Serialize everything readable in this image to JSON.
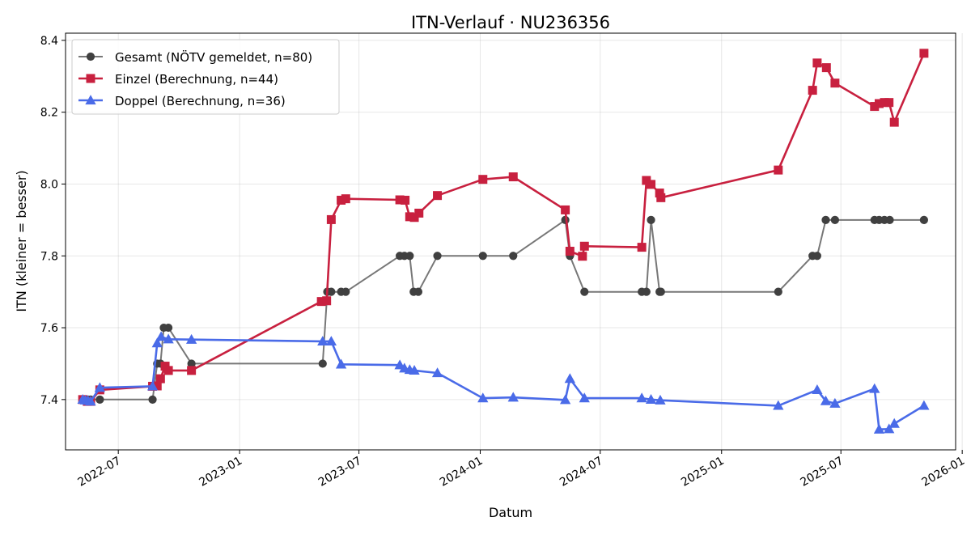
{
  "chart_data": {
    "type": "line",
    "title": "ITN-Verlauf · NU236356",
    "xlabel": "Datum",
    "ylabel": "ITN  (kleiner = besser)",
    "x_type": "date",
    "xlim": [
      "2022-04-12",
      "2025-12-22"
    ],
    "ylim": [
      7.26,
      8.42
    ],
    "x_ticks": [
      "2022-07-01",
      "2023-01-01",
      "2023-07-01",
      "2024-01-01",
      "2024-07-01",
      "2025-01-01",
      "2025-07-01",
      "2026-01-01"
    ],
    "x_tick_labels": [
      "2022-07",
      "2023-01",
      "2023-07",
      "2024-01",
      "2024-07",
      "2025-01",
      "2025-07",
      "2026-01"
    ],
    "y_ticks": [
      7.4,
      7.6,
      7.8,
      8.0,
      8.2,
      8.4
    ],
    "y_tick_labels": [
      "7.4",
      "7.6",
      "7.8",
      "8.0",
      "8.2",
      "8.4"
    ],
    "grid": true,
    "legend_position": "top-left",
    "series": [
      {
        "name": "Gesamt (NÖTV gemeldet, n=80)",
        "color": "#555555",
        "marker": "circle",
        "points": [
          [
            "2022-05-08",
            7.4
          ],
          [
            "2022-05-12",
            7.4
          ],
          [
            "2022-05-16",
            7.4
          ],
          [
            "2022-05-20",
            7.4
          ],
          [
            "2022-06-03",
            7.4
          ],
          [
            "2022-08-22",
            7.4
          ],
          [
            "2022-08-29",
            7.5
          ],
          [
            "2022-09-03",
            7.5
          ],
          [
            "2022-09-08",
            7.6
          ],
          [
            "2022-09-15",
            7.6
          ],
          [
            "2022-10-20",
            7.5
          ],
          [
            "2023-05-07",
            7.5
          ],
          [
            "2023-05-14",
            7.7
          ],
          [
            "2023-05-20",
            7.7
          ],
          [
            "2023-06-04",
            7.7
          ],
          [
            "2023-06-11",
            7.7
          ],
          [
            "2023-09-01",
            7.8
          ],
          [
            "2023-09-08",
            7.8
          ],
          [
            "2023-09-16",
            7.8
          ],
          [
            "2023-09-22",
            7.7
          ],
          [
            "2023-09-29",
            7.7
          ],
          [
            "2023-10-28",
            7.8
          ],
          [
            "2024-01-05",
            7.8
          ],
          [
            "2024-02-20",
            7.8
          ],
          [
            "2024-05-09",
            7.9
          ],
          [
            "2024-05-16",
            7.8
          ],
          [
            "2024-06-07",
            7.7
          ],
          [
            "2024-09-02",
            7.7
          ],
          [
            "2024-09-09",
            7.7
          ],
          [
            "2024-09-16",
            7.9
          ],
          [
            "2024-09-29",
            7.7
          ],
          [
            "2024-10-01",
            7.7
          ],
          [
            "2025-03-28",
            7.7
          ],
          [
            "2025-05-19",
            7.8
          ],
          [
            "2025-05-26",
            7.8
          ],
          [
            "2025-06-08",
            7.9
          ],
          [
            "2025-06-22",
            7.9
          ],
          [
            "2025-08-21",
            7.9
          ],
          [
            "2025-08-28",
            7.9
          ],
          [
            "2025-09-05",
            7.9
          ],
          [
            "2025-09-13",
            7.9
          ],
          [
            "2025-11-04",
            7.9
          ]
        ]
      },
      {
        "name": "Einzel (Berechnung, n=44)",
        "color": "#c8203f",
        "marker": "square",
        "points": [
          [
            "2022-05-08",
            7.4
          ],
          [
            "2022-05-15",
            7.395
          ],
          [
            "2022-05-20",
            7.395
          ],
          [
            "2022-06-03",
            7.427
          ],
          [
            "2022-08-22",
            7.437
          ],
          [
            "2022-08-29",
            7.438
          ],
          [
            "2022-09-03",
            7.458
          ],
          [
            "2022-09-10",
            7.493
          ],
          [
            "2022-09-15",
            7.481
          ],
          [
            "2022-10-20",
            7.481
          ],
          [
            "2023-05-05",
            7.673
          ],
          [
            "2023-05-13",
            7.675
          ],
          [
            "2023-05-20",
            7.901
          ],
          [
            "2023-06-04",
            7.955
          ],
          [
            "2023-06-11",
            7.959
          ],
          [
            "2023-09-01",
            7.956
          ],
          [
            "2023-09-09",
            7.955
          ],
          [
            "2023-09-16",
            7.909
          ],
          [
            "2023-09-23",
            7.907
          ],
          [
            "2023-09-30",
            7.919
          ],
          [
            "2023-10-28",
            7.968
          ],
          [
            "2024-01-05",
            8.013
          ],
          [
            "2024-02-20",
            8.02
          ],
          [
            "2024-05-09",
            7.928
          ],
          [
            "2024-05-16",
            7.813
          ],
          [
            "2024-06-04",
            7.799
          ],
          [
            "2024-06-07",
            7.827
          ],
          [
            "2024-09-02",
            7.824
          ],
          [
            "2024-09-09",
            8.01
          ],
          [
            "2024-09-16",
            7.999
          ],
          [
            "2024-09-29",
            7.975
          ],
          [
            "2024-10-01",
            7.962
          ],
          [
            "2025-03-28",
            8.039
          ],
          [
            "2025-05-19",
            8.261
          ],
          [
            "2025-05-26",
            8.337
          ],
          [
            "2025-06-09",
            8.324
          ],
          [
            "2025-06-22",
            8.281
          ],
          [
            "2025-08-21",
            8.216
          ],
          [
            "2025-08-28",
            8.224
          ],
          [
            "2025-09-05",
            8.227
          ],
          [
            "2025-09-12",
            8.227
          ],
          [
            "2025-09-20",
            8.172
          ],
          [
            "2025-11-04",
            8.364
          ]
        ]
      },
      {
        "name": "Doppel (Berechnung, n=36)",
        "color": "#4a6be8",
        "marker": "triangle",
        "points": [
          [
            "2022-05-08",
            7.4
          ],
          [
            "2022-05-12",
            7.398
          ],
          [
            "2022-05-16",
            7.397
          ],
          [
            "2022-05-20",
            7.395
          ],
          [
            "2022-06-03",
            7.433
          ],
          [
            "2022-08-22",
            7.437
          ],
          [
            "2022-08-29",
            7.557
          ],
          [
            "2022-09-04",
            7.575
          ],
          [
            "2022-09-15",
            7.568
          ],
          [
            "2022-10-20",
            7.567
          ],
          [
            "2023-05-07",
            7.562
          ],
          [
            "2023-05-20",
            7.562
          ],
          [
            "2023-06-04",
            7.498
          ],
          [
            "2023-09-01",
            7.496
          ],
          [
            "2023-09-08",
            7.487
          ],
          [
            "2023-09-16",
            7.483
          ],
          [
            "2023-09-23",
            7.481
          ],
          [
            "2023-10-28",
            7.474
          ],
          [
            "2024-01-05",
            7.404
          ],
          [
            "2024-02-20",
            7.406
          ],
          [
            "2024-05-09",
            7.399
          ],
          [
            "2024-05-16",
            7.458
          ],
          [
            "2024-06-07",
            7.404
          ],
          [
            "2024-09-02",
            7.404
          ],
          [
            "2024-09-16",
            7.4
          ],
          [
            "2024-09-30",
            7.398
          ],
          [
            "2025-03-28",
            7.383
          ],
          [
            "2025-05-26",
            7.427
          ],
          [
            "2025-06-08",
            7.396
          ],
          [
            "2025-06-22",
            7.389
          ],
          [
            "2025-08-21",
            7.43
          ],
          [
            "2025-08-28",
            7.317
          ],
          [
            "2025-09-12",
            7.318
          ],
          [
            "2025-09-20",
            7.333
          ],
          [
            "2025-11-04",
            7.383
          ]
        ]
      }
    ]
  }
}
